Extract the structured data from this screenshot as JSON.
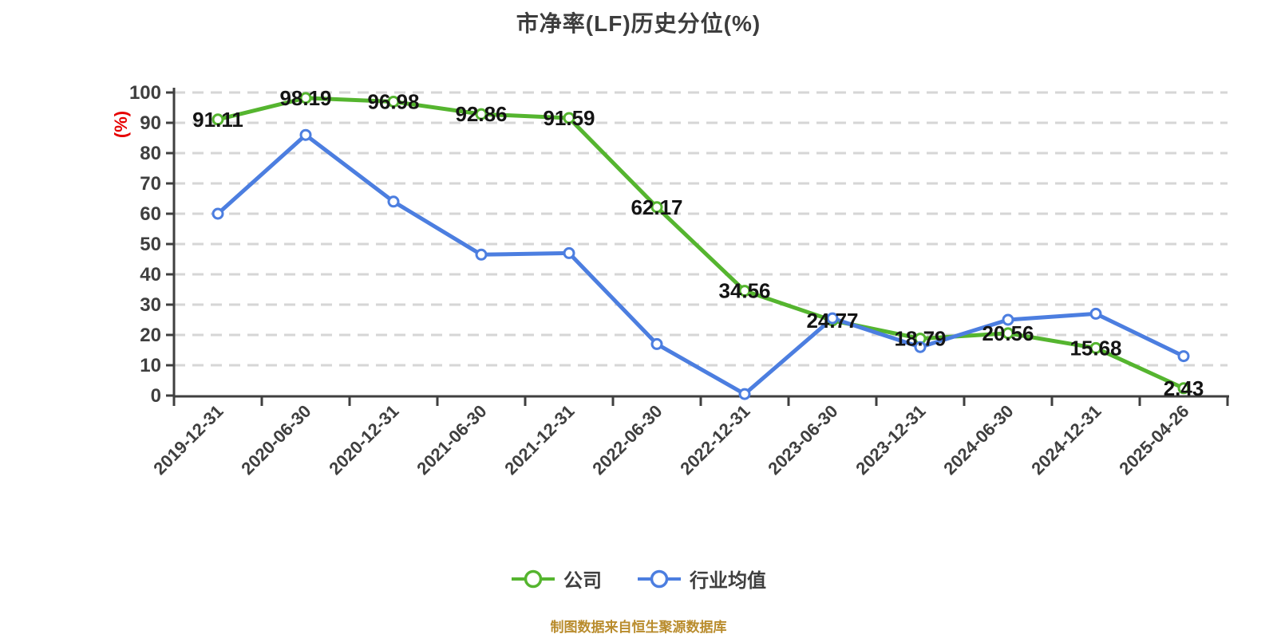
{
  "title": "市净率(LF)历史分位(%)",
  "footer_note": "制图数据来自恒生聚源数据库",
  "colors": {
    "background": "#ffffff",
    "title": "#3d3d3d",
    "axis": "#3f3f3f",
    "grid": "#d6d6d6",
    "y_axis_name": "#e60000",
    "data_label": "#141414",
    "company": "#55b52f",
    "industry": "#4c7ee0",
    "footer": "#b98c2d"
  },
  "legend": {
    "items": [
      {
        "label": "公司",
        "color": "#55b52f"
      },
      {
        "label": "行业均值",
        "color": "#4c7ee0"
      }
    ]
  },
  "chart_data": {
    "type": "line",
    "title": "市净率(LF)历史分位(%)",
    "xlabel": "",
    "ylabel": "(%)",
    "ylim": [
      0,
      100
    ],
    "y_tick_step": 10,
    "grid": "horizontal-dashed",
    "legend_position": "bottom",
    "categories": [
      "2019-12-31",
      "2020-06-30",
      "2020-12-31",
      "2021-06-30",
      "2021-12-31",
      "2022-06-30",
      "2022-12-31",
      "2023-06-30",
      "2023-12-31",
      "2024-06-30",
      "2024-12-31",
      "2025-04-26"
    ],
    "series": [
      {
        "name": "公司",
        "color": "#55b52f",
        "labeled": true,
        "values": [
          91.11,
          98.19,
          96.98,
          92.86,
          91.59,
          62.17,
          34.56,
          24.77,
          18.79,
          20.56,
          15.68,
          2.43
        ]
      },
      {
        "name": "行业均值",
        "color": "#4c7ee0",
        "labeled": false,
        "values": [
          60,
          86,
          64,
          46.5,
          47,
          17,
          0.5,
          25.5,
          16,
          25,
          27,
          13
        ]
      }
    ]
  }
}
